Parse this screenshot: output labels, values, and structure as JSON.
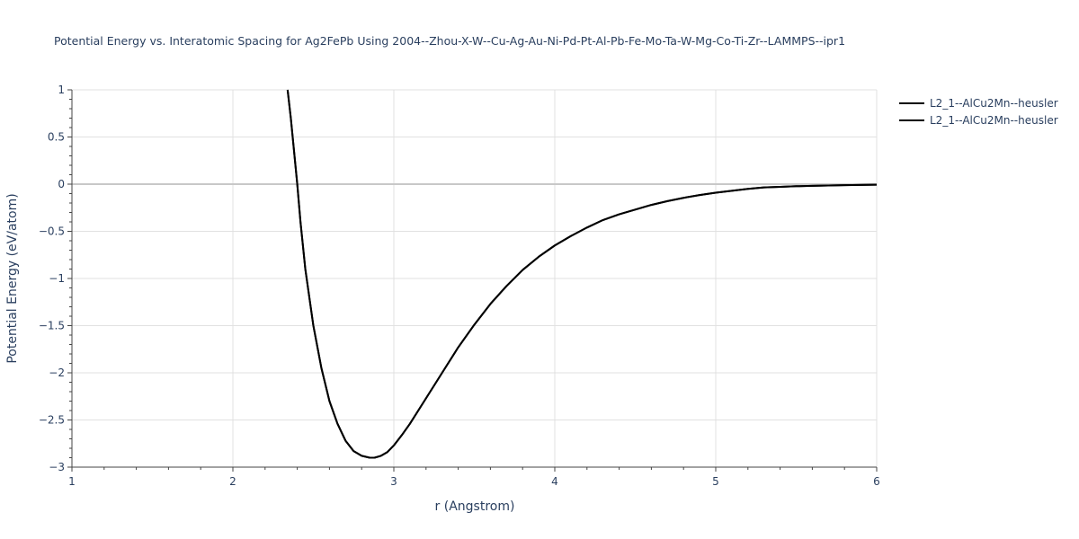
{
  "chart_data": {
    "type": "line",
    "title": "Potential Energy vs. Interatomic Spacing for Ag2FePb Using 2004--Zhou-X-W--Cu-Ag-Au-Ni-Pd-Pt-Al-Pb-Fe-Mo-Ta-W-Mg-Co-Ti-Zr--LAMMPS--ipr1",
    "xlabel": "r (Angstrom)",
    "ylabel": "Potential Energy (eV/atom)",
    "xlim": [
      1,
      6
    ],
    "ylim": [
      -3,
      1
    ],
    "x_ticks": [
      "1",
      "2",
      "3",
      "4",
      "5",
      "6"
    ],
    "y_ticks": [
      "1",
      "0.5",
      "0",
      "−0.5",
      "−1",
      "−1.5",
      "−2",
      "−2.5",
      "−3"
    ],
    "grid": true,
    "legend_position": "top-right",
    "series": [
      {
        "name": "L2_1--AlCu2Mn--heusler",
        "color": "#000000",
        "x": [
          2.34,
          2.36,
          2.38,
          2.4,
          2.42,
          2.45,
          2.5,
          2.55,
          2.6,
          2.65,
          2.7,
          2.75,
          2.8,
          2.85,
          2.88,
          2.92,
          2.96,
          3.0,
          3.05,
          3.1,
          3.2,
          3.3,
          3.4,
          3.5,
          3.6,
          3.7,
          3.8,
          3.9,
          4.0,
          4.1,
          4.2,
          4.3,
          4.4,
          4.5,
          4.6,
          4.7,
          4.8,
          4.9,
          5.0,
          5.1,
          5.2,
          5.3,
          5.4,
          5.5,
          5.6,
          5.7,
          5.8,
          5.9,
          6.0
        ],
        "y": [
          1.0,
          0.7,
          0.35,
          0.0,
          -0.4,
          -0.9,
          -1.5,
          -1.95,
          -2.3,
          -2.54,
          -2.72,
          -2.83,
          -2.88,
          -2.9,
          -2.9,
          -2.88,
          -2.84,
          -2.77,
          -2.66,
          -2.54,
          -2.27,
          -2.0,
          -1.73,
          -1.49,
          -1.27,
          -1.08,
          -0.91,
          -0.77,
          -0.65,
          -0.55,
          -0.46,
          -0.38,
          -0.32,
          -0.27,
          -0.22,
          -0.18,
          -0.145,
          -0.115,
          -0.09,
          -0.07,
          -0.05,
          -0.035,
          -0.028,
          -0.022,
          -0.018,
          -0.014,
          -0.011,
          -0.008,
          -0.006
        ]
      },
      {
        "name": "L2_1--AlCu2Mn--heusler",
        "color": "#000000",
        "x": [
          2.34,
          2.36,
          2.38,
          2.4,
          2.42,
          2.45,
          2.5,
          2.55,
          2.6,
          2.65,
          2.7,
          2.75,
          2.8,
          2.85,
          2.88,
          2.92,
          2.96,
          3.0,
          3.05,
          3.1,
          3.2,
          3.3,
          3.4,
          3.5,
          3.6,
          3.7,
          3.8,
          3.9,
          4.0,
          4.1,
          4.2,
          4.3,
          4.4,
          4.5,
          4.6,
          4.7,
          4.8,
          4.9,
          5.0,
          5.1,
          5.2,
          5.3,
          5.4,
          5.5,
          5.6,
          5.7,
          5.8,
          5.9,
          6.0
        ],
        "y": [
          1.0,
          0.7,
          0.35,
          0.0,
          -0.4,
          -0.9,
          -1.5,
          -1.95,
          -2.3,
          -2.54,
          -2.72,
          -2.83,
          -2.88,
          -2.9,
          -2.9,
          -2.88,
          -2.84,
          -2.77,
          -2.66,
          -2.54,
          -2.27,
          -2.0,
          -1.73,
          -1.49,
          -1.27,
          -1.08,
          -0.91,
          -0.77,
          -0.65,
          -0.55,
          -0.46,
          -0.38,
          -0.32,
          -0.27,
          -0.22,
          -0.18,
          -0.145,
          -0.115,
          -0.09,
          -0.07,
          -0.05,
          -0.035,
          -0.028,
          -0.022,
          -0.018,
          -0.014,
          -0.011,
          -0.008,
          -0.006
        ]
      }
    ]
  }
}
